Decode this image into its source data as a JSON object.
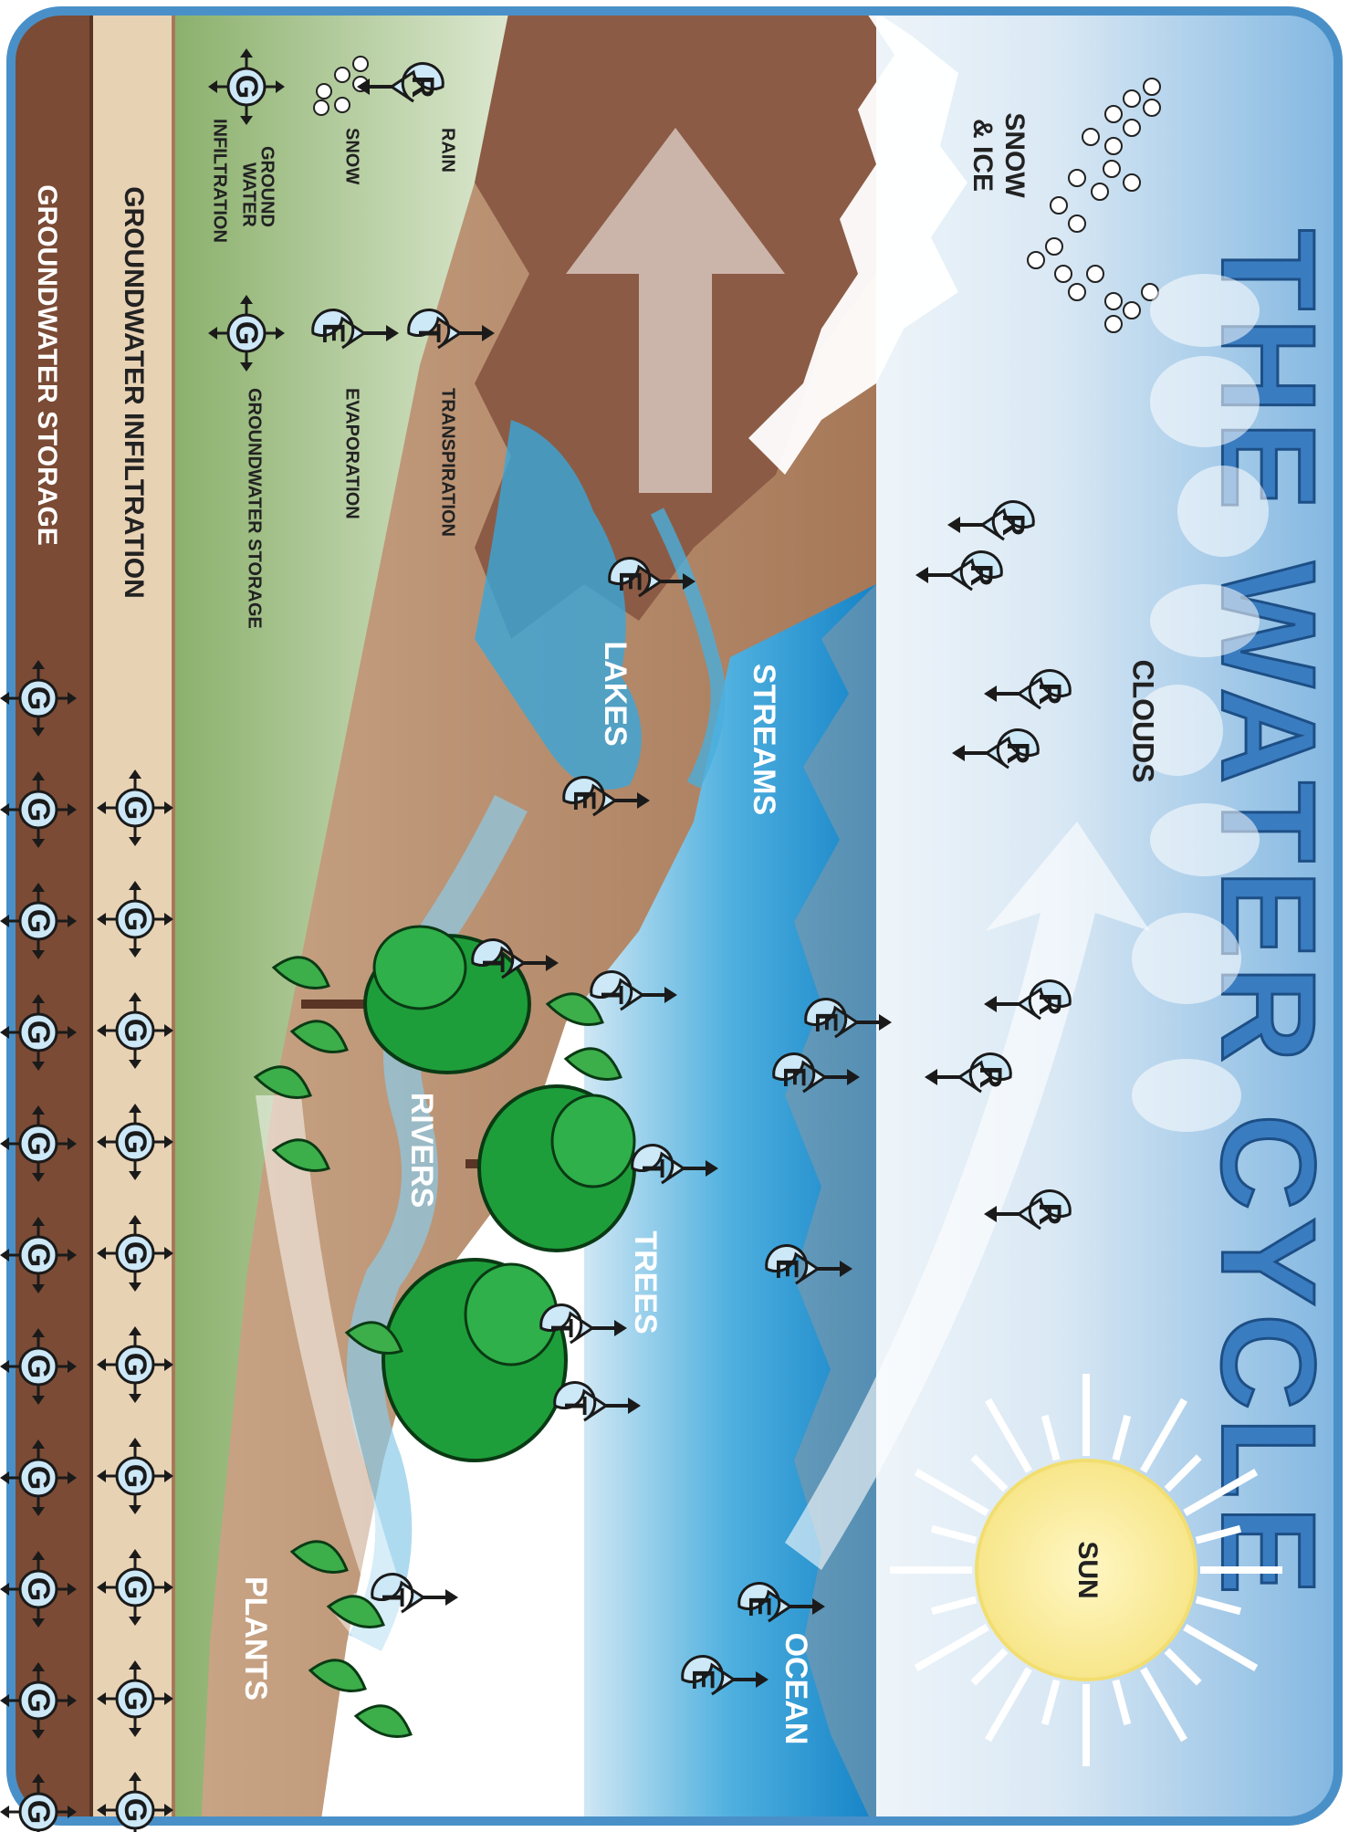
{
  "title": "THE WATER CYCLE",
  "scene_labels": {
    "snow_ice": [
      "SNOW",
      "& ICE"
    ],
    "clouds": "CLOUDS",
    "sun": "SUN",
    "streams": "STREAMS",
    "lakes": "LAKES",
    "rivers": "RIVERS",
    "trees": "TREES",
    "plants": "PLANTS",
    "ocean": "OCEAN",
    "groundwater_infiltration": "GROUNDWATER INFILTRATION",
    "groundwater_storage": "GROUNDWATER STORAGE"
  },
  "legend": {
    "rain": "RAIN",
    "snow": "SNOW",
    "ground_water_infiltration": [
      "GROUND",
      "WATER",
      "INFILTRATION"
    ],
    "transpiration": "TRANSPIRATION",
    "evaporation": "EVAPORATION",
    "groundwater_storage": "GROUNDWATER STORAGE"
  },
  "token_letters": {
    "rain": "R",
    "transpiration": "T",
    "evaporation": "E",
    "groundwater": "G"
  },
  "colors": {
    "frame_border": "#4a90c8",
    "sky_light": "#e8f1f8",
    "sky_blue": "#8fc0e4",
    "mountain_brown": "#8a5a44",
    "land_tan": "#b8896a",
    "grass_green": "#8fb06e",
    "water_blue": "#2a9fd6",
    "ocean_deep": "#1a86c8",
    "soil_dark": "#7a4a34",
    "soil_light": "#e8d2b4",
    "tree_green": "#1e9e3a",
    "sun_yellow": "#f9ee9e",
    "title_blue": "#3a7cc0"
  }
}
